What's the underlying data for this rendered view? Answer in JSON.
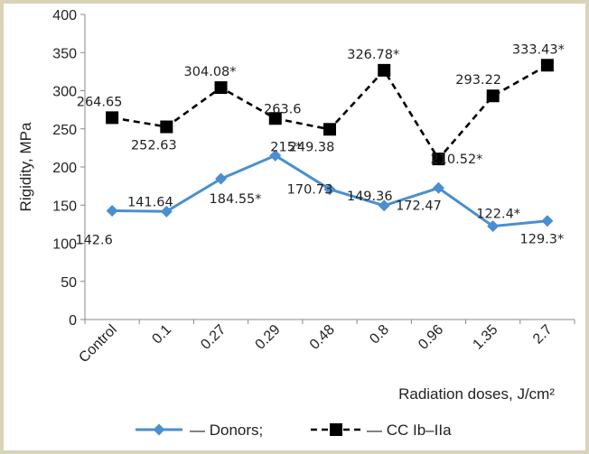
{
  "chart_data": {
    "type": "line",
    "title": "",
    "xlabel": "Radiation doses, J/cm²",
    "ylabel": "Rigidity, MPa",
    "ylim": [
      0,
      400
    ],
    "yticks": [
      0,
      50,
      100,
      150,
      200,
      250,
      300,
      350,
      400
    ],
    "categories": [
      "Control",
      "0.1",
      "0.27",
      "0.29",
      "0.48",
      "0.8",
      "0.96",
      "1.35",
      "2.7"
    ],
    "grid": false,
    "legend_position": "bottom",
    "series": [
      {
        "name": "— Donors;",
        "color": "#4a8fcf",
        "marker": "diamond",
        "line_style": "solid",
        "values": [
          142.6,
          141.64,
          184.55,
          215,
          170.73,
          149.36,
          172.47,
          122.4,
          129.3
        ],
        "labels": [
          "142.6",
          "141.64",
          "184.55*",
          "215*",
          "170.73",
          "149.36",
          "172.47",
          "122.4*",
          "129.3*"
        ]
      },
      {
        "name": "— CC Ib–IIa",
        "color": "#000000",
        "marker": "square",
        "line_style": "dashed",
        "values": [
          264.65,
          252.63,
          304.08,
          263.6,
          249.38,
          326.78,
          210.52,
          293.22,
          333.43
        ],
        "labels": [
          "264.65",
          "252.63",
          "304.08*",
          "263.6",
          "249.38",
          "326.78*",
          "210.52*",
          "293.22",
          "333.43*"
        ]
      }
    ]
  }
}
